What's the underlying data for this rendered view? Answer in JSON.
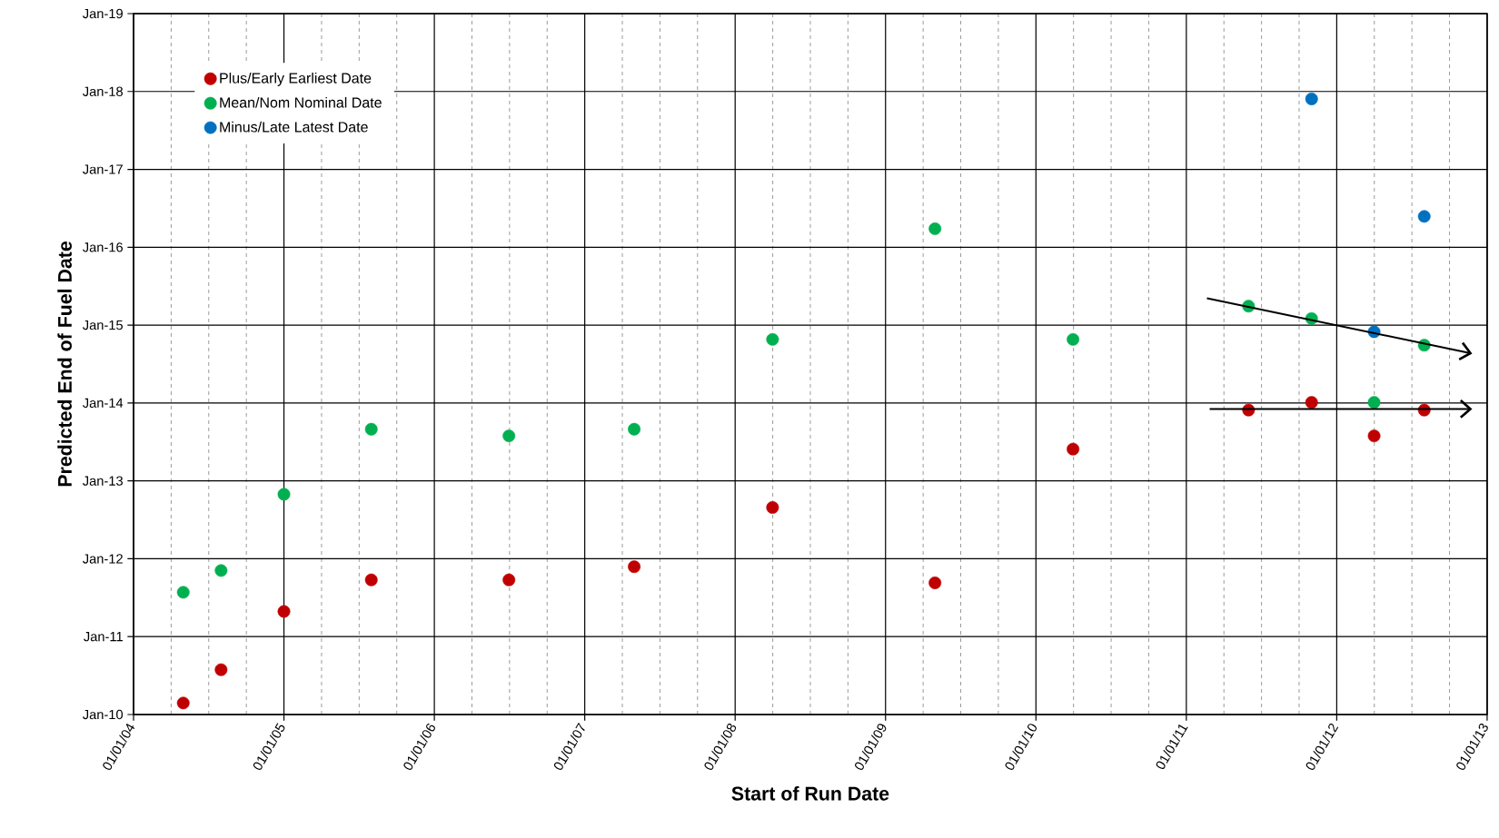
{
  "chart_data": {
    "type": "scatter",
    "xlabel": "Start of Run Date",
    "ylabel": "Predicted End of Fuel Date",
    "xlim": [
      "2004-01-01",
      "2013-01-01"
    ],
    "ylim": [
      "2010-01",
      "2019-01"
    ],
    "xticks": [
      {
        "value": "2004-01-01",
        "label": "01/01/04"
      },
      {
        "value": "2005-01-01",
        "label": "01/01/05"
      },
      {
        "value": "2006-01-01",
        "label": "01/01/06"
      },
      {
        "value": "2007-01-01",
        "label": "01/01/07"
      },
      {
        "value": "2008-01-01",
        "label": "01/01/08"
      },
      {
        "value": "2009-01-01",
        "label": "01/01/09"
      },
      {
        "value": "2010-01-01",
        "label": "01/01/10"
      },
      {
        "value": "2011-01-01",
        "label": "01/01/11"
      },
      {
        "value": "2012-01-01",
        "label": "01/01/12"
      },
      {
        "value": "2013-01-01",
        "label": "01/01/13"
      }
    ],
    "yticks": [
      {
        "value": "2010-01",
        "label": "Jan-10"
      },
      {
        "value": "2011-01",
        "label": "Jan-11"
      },
      {
        "value": "2012-01",
        "label": "Jan-12"
      },
      {
        "value": "2013-01",
        "label": "Jan-13"
      },
      {
        "value": "2014-01",
        "label": "Jan-14"
      },
      {
        "value": "2015-01",
        "label": "Jan-15"
      },
      {
        "value": "2016-01",
        "label": "Jan-16"
      },
      {
        "value": "2017-01",
        "label": "Jan-17"
      },
      {
        "value": "2018-01",
        "label": "Jan-18"
      },
      {
        "value": "2019-01",
        "label": "Jan-19"
      }
    ],
    "grid": true,
    "legend": "top left",
    "marker": "circle",
    "series": [
      {
        "name": "Plus/Early Earliest Date",
        "color": "#c00000",
        "x": [
          "2004-05",
          "2004-08",
          "2005-01",
          "2005-08",
          "2006-07",
          "2007-05",
          "2008-04",
          "2009-05",
          "2010-04",
          "2011-06",
          "2011-11",
          "2012-04",
          "2012-08"
        ],
        "values": [
          14664,
          14820,
          15093,
          15241,
          15241,
          15303,
          15581,
          15227,
          15855,
          16038,
          16074,
          15917,
          16038
        ]
      },
      {
        "name": "Mean/Nom Nominal  Date",
        "color": "#00b050",
        "x": [
          "2004-05",
          "2004-08",
          "2005-01",
          "2005-08",
          "2006-07",
          "2007-05",
          "2008-04",
          "2009-05",
          "2010-04",
          "2011-06",
          "2011-11",
          "2012-04",
          "2012-08"
        ],
        "values": [
          15183,
          15285,
          15643,
          15948,
          15917,
          15948,
          16369,
          16888,
          16369,
          16525,
          16467,
          16074,
          16342
        ]
      },
      {
        "name": "Minus/Late Latest Date",
        "color": "#0070c0",
        "x": [
          "2011-11",
          "2012-04",
          "2012-08"
        ],
        "values": [
          17497,
          16405,
          16946
        ]
      }
    ]
  }
}
